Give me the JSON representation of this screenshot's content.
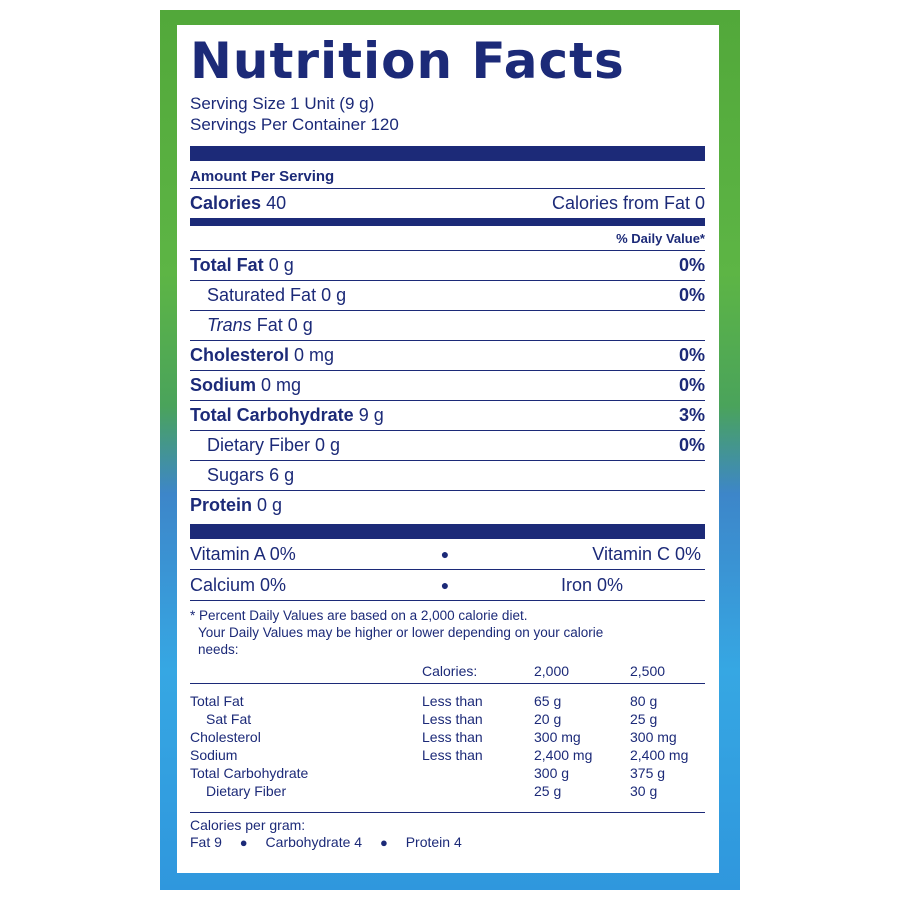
{
  "title": "Nutrition Facts",
  "serving_size": "Serving Size 1 Unit (9 g)",
  "servings_per_container": "Servings Per Container 120",
  "amount_per_serving": "Amount Per Serving",
  "calories": {
    "label": "Calories",
    "value": "40",
    "from_fat": "Calories from Fat 0"
  },
  "daily_value_header": "% Daily Value*",
  "nutrients": [
    {
      "label": "Total Fat",
      "amount": "0 g",
      "dv": "0%"
    },
    {
      "label": "Saturated Fat",
      "amount": "0 g",
      "dv": "0%"
    },
    {
      "label": "Trans",
      "label_rest": "Fat",
      "amount": "0 g",
      "dv": ""
    },
    {
      "label": "Cholesterol",
      "amount": "0 mg",
      "dv": "0%"
    },
    {
      "label": "Sodium",
      "amount": "0 mg",
      "dv": "0%"
    },
    {
      "label": "Total Carbohydrate",
      "amount": "9 g",
      "dv": "3%"
    },
    {
      "label": "Dietary Fiber",
      "amount": "0 g",
      "dv": "0%"
    },
    {
      "label": "Sugars",
      "amount": "6 g",
      "dv": ""
    },
    {
      "label": "Protein",
      "amount": "0 g",
      "dv": ""
    }
  ],
  "vitamins": [
    {
      "left": "Vitamin A  0%",
      "right": "Vitamin C  0%"
    },
    {
      "left": "Calcium  0%",
      "right": "Iron  0%"
    }
  ],
  "footnote": {
    "line1": "* Percent Daily Values are based on a 2,000 calorie diet.",
    "line2": "Your Daily Values may be higher or lower depending on your calorie",
    "line3": "needs:"
  },
  "dv_table": {
    "header": {
      "label": "Calories:",
      "v1": "2,000",
      "v2": "2,500"
    },
    "rows": [
      {
        "name": "Total Fat",
        "less": "Less than",
        "v1": "65  g",
        "v2": "80 g"
      },
      {
        "name": "Sat Fat",
        "less": "Less than",
        "v1": "20 g",
        "v2": "25 g"
      },
      {
        "name": "Cholesterol",
        "less": "Less than",
        "v1": "300 mg",
        "v2": "300 mg"
      },
      {
        "name": "Sodium",
        "less": "Less than",
        "v1": "2,400 mg",
        "v2": "2,400 mg"
      },
      {
        "name": "Total Carbohydrate",
        "less": "",
        "v1": "300 g",
        "v2": "375 g"
      },
      {
        "name": "Dietary Fiber",
        "less": "",
        "v1": "25 g",
        "v2": "30 g"
      }
    ]
  },
  "calories_per_gram": {
    "label": "Calories per gram:",
    "fat": "Fat  9",
    "carb": "Carbohydrate  4",
    "protein": "Protein  4"
  },
  "colors": {
    "ink": "#1c2a78",
    "package_green": "#52a83a",
    "package_blue": "#36a7e3"
  }
}
